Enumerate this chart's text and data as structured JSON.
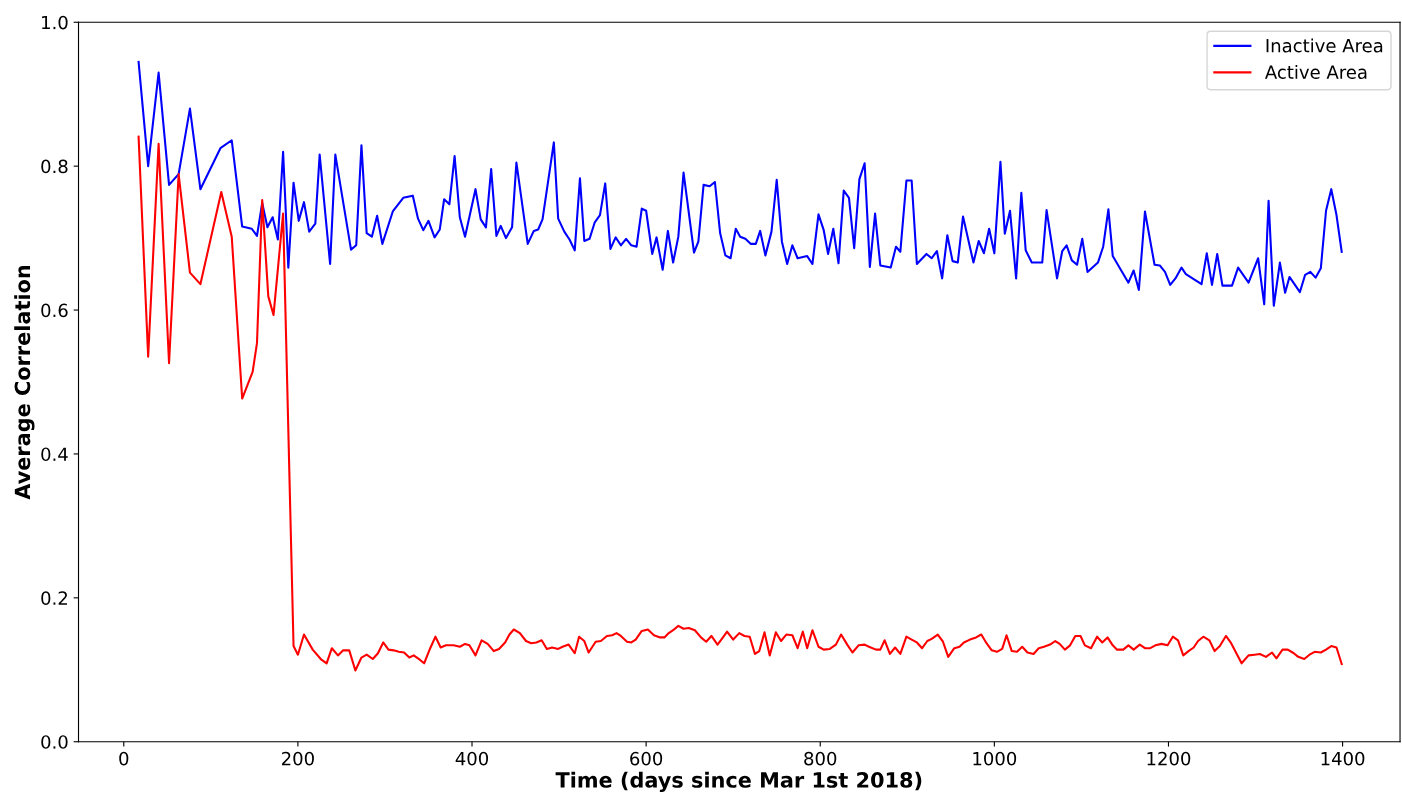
{
  "chart_data": {
    "type": "line",
    "xlabel": "Time (days since Mar 1st 2018)",
    "ylabel": "Average Correlation",
    "xlim": [
      -52,
      1466
    ],
    "ylim": [
      0,
      1
    ],
    "xticks": [
      0,
      200,
      400,
      600,
      800,
      1000,
      1200,
      1400
    ],
    "yticks": [
      {
        "value": 0,
        "label": "0.0"
      },
      {
        "value": 0.2,
        "label": "0.2"
      },
      {
        "value": 0.4,
        "label": "0.4"
      },
      {
        "value": 0.6,
        "label": "0.6"
      },
      {
        "value": 0.8,
        "label": "0.8"
      },
      {
        "value": 1,
        "label": "1.0"
      }
    ],
    "grid": false,
    "legend": "top right",
    "marker": "none",
    "line_style": "solid",
    "series": [
      {
        "name": "Inactive Area",
        "color": "#0000ff",
        "x": [
          17,
          28,
          40,
          52,
          63,
          76,
          88,
          111,
          124,
          136,
          147,
          153,
          159,
          165,
          171,
          177,
          183,
          189,
          195,
          201,
          207,
          213,
          220,
          225,
          237,
          243,
          261,
          267,
          273,
          279,
          285,
          291,
          297,
          309,
          321,
          332,
          338,
          344,
          350,
          357,
          363,
          368,
          374,
          380,
          386,
          392,
          404,
          410,
          416,
          422,
          428,
          433,
          439,
          446,
          451,
          464,
          471,
          476,
          481,
          494,
          499,
          506,
          512,
          518,
          524,
          529,
          535,
          541,
          547,
          553,
          559,
          565,
          571,
          577,
          583,
          589,
          595,
          600,
          607,
          612,
          619,
          625,
          631,
          637,
          643,
          655,
          660,
          666,
          673,
          679,
          685,
          691,
          697,
          703,
          708,
          714,
          720,
          726,
          731,
          737,
          744,
          750,
          756,
          762,
          768,
          774,
          785,
          791,
          798,
          804,
          809,
          815,
          821,
          827,
          833,
          839,
          845,
          851,
          857,
          863,
          869,
          881,
          887,
          892,
          899,
          905,
          911,
          922,
          928,
          934,
          940,
          946,
          952,
          958,
          964,
          976,
          982,
          988,
          994,
          1000,
          1007,
          1012,
          1018,
          1025,
          1031,
          1036,
          1043,
          1055,
          1060,
          1072,
          1078,
          1083,
          1089,
          1095,
          1101,
          1107,
          1119,
          1125,
          1131,
          1136,
          1154,
          1160,
          1166,
          1173,
          1184,
          1190,
          1196,
          1202,
          1208,
          1215,
          1220,
          1238,
          1244,
          1250,
          1256,
          1262,
          1273,
          1280,
          1292,
          1303,
          1310,
          1315,
          1321,
          1328,
          1334,
          1339,
          1351,
          1357,
          1363,
          1369,
          1375,
          1381,
          1387,
          1393,
          1399
        ],
        "values": [
          0.945,
          0.8,
          0.93,
          0.774,
          0.789,
          0.88,
          0.768,
          0.825,
          0.836,
          0.716,
          0.713,
          0.703,
          0.749,
          0.715,
          0.729,
          0.698,
          0.82,
          0.659,
          0.777,
          0.724,
          0.75,
          0.709,
          0.72,
          0.816,
          0.664,
          0.816,
          0.684,
          0.69,
          0.829,
          0.707,
          0.702,
          0.731,
          0.692,
          0.737,
          0.756,
          0.759,
          0.727,
          0.711,
          0.724,
          0.701,
          0.712,
          0.754,
          0.747,
          0.814,
          0.729,
          0.702,
          0.768,
          0.726,
          0.715,
          0.796,
          0.703,
          0.717,
          0.7,
          0.715,
          0.805,
          0.692,
          0.71,
          0.712,
          0.726,
          0.833,
          0.727,
          0.709,
          0.698,
          0.683,
          0.783,
          0.696,
          0.699,
          0.722,
          0.732,
          0.776,
          0.685,
          0.701,
          0.69,
          0.699,
          0.69,
          0.688,
          0.741,
          0.738,
          0.678,
          0.701,
          0.656,
          0.71,
          0.666,
          0.702,
          0.791,
          0.68,
          0.695,
          0.774,
          0.772,
          0.778,
          0.707,
          0.676,
          0.672,
          0.713,
          0.702,
          0.699,
          0.692,
          0.692,
          0.71,
          0.676,
          0.709,
          0.781,
          0.695,
          0.664,
          0.69,
          0.672,
          0.675,
          0.664,
          0.733,
          0.711,
          0.678,
          0.713,
          0.665,
          0.766,
          0.756,
          0.686,
          0.782,
          0.804,
          0.66,
          0.734,
          0.662,
          0.659,
          0.688,
          0.681,
          0.78,
          0.78,
          0.664,
          0.678,
          0.672,
          0.682,
          0.644,
          0.704,
          0.668,
          0.666,
          0.73,
          0.666,
          0.696,
          0.679,
          0.713,
          0.679,
          0.806,
          0.706,
          0.738,
          0.644,
          0.763,
          0.683,
          0.666,
          0.666,
          0.739,
          0.644,
          0.682,
          0.69,
          0.669,
          0.663,
          0.699,
          0.653,
          0.666,
          0.688,
          0.74,
          0.675,
          0.638,
          0.655,
          0.628,
          0.737,
          0.663,
          0.662,
          0.653,
          0.635,
          0.644,
          0.659,
          0.65,
          0.636,
          0.679,
          0.635,
          0.678,
          0.634,
          0.634,
          0.659,
          0.638,
          0.672,
          0.608,
          0.752,
          0.606,
          0.666,
          0.624,
          0.646,
          0.625,
          0.649,
          0.653,
          0.645,
          0.658,
          0.738,
          0.768,
          0.732,
          0.681
        ]
      },
      {
        "name": "Active Area",
        "color": "#ff0000",
        "x": [
          17,
          28,
          40,
          52,
          63,
          76,
          88,
          112,
          124,
          136,
          148,
          153,
          159,
          166,
          172,
          183,
          195,
          200,
          207,
          217,
          227,
          233,
          239,
          246,
          252,
          259,
          266,
          273,
          279,
          286,
          292,
          298,
          304,
          310,
          316,
          322,
          328,
          333,
          340,
          345,
          352,
          358,
          364,
          370,
          379,
          386,
          392,
          397,
          404,
          411,
          418,
          425,
          431,
          438,
          443,
          448,
          455,
          462,
          468,
          474,
          480,
          486,
          492,
          499,
          504,
          511,
          518,
          523,
          529,
          534,
          542,
          548,
          555,
          561,
          566,
          571,
          578,
          583,
          588,
          595,
          602,
          609,
          616,
          621,
          626,
          631,
          637,
          643,
          649,
          656,
          663,
          669,
          675,
          682,
          687,
          693,
          700,
          707,
          713,
          719,
          725,
          730,
          736,
          742,
          749,
          755,
          761,
          768,
          774,
          780,
          785,
          791,
          798,
          804,
          811,
          818,
          824,
          831,
          837,
          844,
          851,
          856,
          864,
          869,
          874,
          880,
          886,
          892,
          899,
          905,
          911,
          917,
          923,
          928,
          935,
          941,
          947,
          954,
          960,
          965,
          972,
          979,
          985,
          991,
          997,
          1003,
          1009,
          1014,
          1020,
          1026,
          1032,
          1038,
          1045,
          1051,
          1057,
          1064,
          1070,
          1075,
          1081,
          1087,
          1093,
          1099,
          1104,
          1111,
          1118,
          1124,
          1130,
          1136,
          1141,
          1148,
          1154,
          1160,
          1167,
          1173,
          1179,
          1185,
          1192,
          1199,
          1205,
          1211,
          1217,
          1223,
          1229,
          1234,
          1240,
          1247,
          1253,
          1259,
          1266,
          1272,
          1278,
          1284,
          1292,
          1299,
          1305,
          1312,
          1319,
          1324,
          1331,
          1337,
          1344,
          1349,
          1356,
          1362,
          1368,
          1375,
          1381,
          1387,
          1393,
          1399
        ],
        "values": [
          0.841,
          0.535,
          0.831,
          0.526,
          0.789,
          0.652,
          0.636,
          0.764,
          0.702,
          0.477,
          0.514,
          0.554,
          0.753,
          0.619,
          0.593,
          0.734,
          0.133,
          0.121,
          0.149,
          0.128,
          0.114,
          0.109,
          0.13,
          0.12,
          0.127,
          0.127,
          0.099,
          0.117,
          0.121,
          0.115,
          0.123,
          0.138,
          0.128,
          0.127,
          0.125,
          0.124,
          0.117,
          0.12,
          0.114,
          0.109,
          0.13,
          0.146,
          0.131,
          0.134,
          0.134,
          0.132,
          0.136,
          0.134,
          0.12,
          0.141,
          0.136,
          0.126,
          0.129,
          0.138,
          0.149,
          0.156,
          0.151,
          0.14,
          0.137,
          0.138,
          0.141,
          0.129,
          0.131,
          0.129,
          0.132,
          0.135,
          0.123,
          0.146,
          0.14,
          0.124,
          0.139,
          0.14,
          0.147,
          0.148,
          0.151,
          0.147,
          0.139,
          0.138,
          0.142,
          0.154,
          0.156,
          0.148,
          0.145,
          0.145,
          0.151,
          0.155,
          0.161,
          0.157,
          0.158,
          0.155,
          0.145,
          0.139,
          0.147,
          0.135,
          0.143,
          0.153,
          0.142,
          0.151,
          0.147,
          0.146,
          0.122,
          0.126,
          0.152,
          0.12,
          0.152,
          0.14,
          0.149,
          0.148,
          0.13,
          0.153,
          0.13,
          0.155,
          0.132,
          0.128,
          0.129,
          0.135,
          0.149,
          0.135,
          0.124,
          0.134,
          0.135,
          0.132,
          0.128,
          0.128,
          0.141,
          0.122,
          0.131,
          0.122,
          0.146,
          0.142,
          0.138,
          0.13,
          0.14,
          0.143,
          0.149,
          0.139,
          0.118,
          0.13,
          0.132,
          0.138,
          0.142,
          0.145,
          0.149,
          0.137,
          0.127,
          0.125,
          0.129,
          0.148,
          0.126,
          0.125,
          0.132,
          0.124,
          0.122,
          0.13,
          0.132,
          0.135,
          0.14,
          0.136,
          0.128,
          0.134,
          0.147,
          0.147,
          0.134,
          0.13,
          0.146,
          0.138,
          0.145,
          0.134,
          0.128,
          0.128,
          0.134,
          0.128,
          0.135,
          0.13,
          0.13,
          0.134,
          0.136,
          0.134,
          0.146,
          0.141,
          0.12,
          0.126,
          0.131,
          0.14,
          0.146,
          0.141,
          0.126,
          0.133,
          0.147,
          0.137,
          0.123,
          0.109,
          0.12,
          0.121,
          0.122,
          0.118,
          0.124,
          0.116,
          0.128,
          0.128,
          0.123,
          0.118,
          0.115,
          0.121,
          0.125,
          0.124,
          0.128,
          0.133,
          0.131,
          0.108
        ]
      }
    ]
  }
}
